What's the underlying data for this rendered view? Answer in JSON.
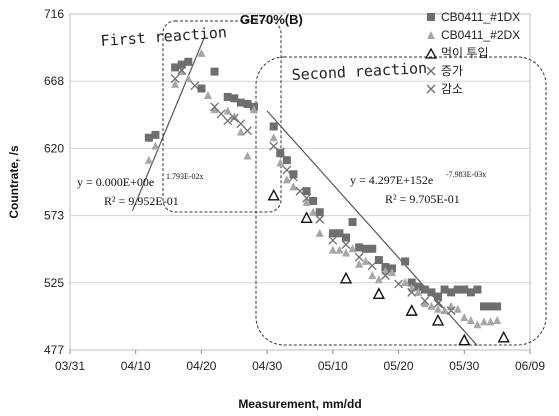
{
  "chart_data": {
    "type": "scatter",
    "title": "GE70%(B)",
    "xlabel": "Measurement, mm/dd",
    "ylabel": "Countrate, /s",
    "x_ticks": [
      "03/31",
      "04/10",
      "04/20",
      "04/30",
      "05/10",
      "05/20",
      "05/30",
      "06/09"
    ],
    "y_ticks": [
      "716",
      "668",
      "620",
      "573",
      "525",
      "477"
    ],
    "ylim": [
      477,
      716
    ],
    "xlim": [
      0,
      70
    ],
    "grid": "horizontal",
    "legend_position": "top-right",
    "legend": [
      "CB0411_#1DX",
      "CB0411_#2DX",
      "먹이 투입",
      "증가",
      "감소"
    ],
    "series": [
      {
        "name": "CB0411_#1DX",
        "marker": "square",
        "color": "#6e6e6e",
        "points": [
          [
            12,
            628
          ],
          [
            13,
            630
          ],
          [
            16,
            678
          ],
          [
            17,
            680
          ],
          [
            18,
            682
          ],
          [
            20,
            663
          ],
          [
            22,
            675
          ],
          [
            24,
            657
          ],
          [
            25,
            656
          ],
          [
            26,
            653
          ],
          [
            27,
            652
          ],
          [
            28,
            650
          ],
          [
            31,
            636
          ],
          [
            32,
            617
          ],
          [
            33,
            612
          ],
          [
            34,
            602
          ],
          [
            36,
            590
          ],
          [
            37,
            583
          ],
          [
            38,
            575
          ],
          [
            40,
            560
          ],
          [
            41,
            560
          ],
          [
            42,
            557
          ],
          [
            43,
            568
          ],
          [
            44,
            550
          ],
          [
            45,
            549
          ],
          [
            46,
            549
          ],
          [
            47,
            541
          ],
          [
            48,
            536
          ],
          [
            49,
            535
          ],
          [
            51,
            540
          ],
          [
            52,
            525
          ],
          [
            53,
            522
          ],
          [
            54,
            520
          ],
          [
            55,
            518
          ],
          [
            56,
            515
          ],
          [
            57,
            520
          ],
          [
            58,
            518
          ],
          [
            59,
            520
          ],
          [
            60,
            520
          ],
          [
            61,
            518
          ],
          [
            62,
            520
          ],
          [
            63,
            508
          ],
          [
            64,
            508
          ],
          [
            65,
            508
          ]
        ]
      },
      {
        "name": "CB0411_#2DX",
        "marker": "triangle",
        "color": "#a6a6a6",
        "points": [
          [
            12,
            612
          ],
          [
            13,
            622
          ],
          [
            16,
            666
          ],
          [
            17,
            675
          ],
          [
            18,
            670
          ],
          [
            20,
            688
          ],
          [
            21,
            658
          ],
          [
            22,
            648
          ],
          [
            24,
            647
          ],
          [
            25,
            643
          ],
          [
            26,
            632
          ],
          [
            27,
            615
          ],
          [
            28,
            648
          ],
          [
            31,
            628
          ],
          [
            32,
            610
          ],
          [
            33,
            598
          ],
          [
            34,
            593
          ],
          [
            36,
            582
          ],
          [
            37,
            575
          ],
          [
            38,
            560
          ],
          [
            40,
            548
          ],
          [
            41,
            548
          ],
          [
            42,
            546
          ],
          [
            43,
            549
          ],
          [
            44,
            538
          ],
          [
            45,
            540
          ],
          [
            46,
            530
          ],
          [
            47,
            527
          ],
          [
            48,
            533
          ],
          [
            49,
            532
          ],
          [
            51,
            525
          ],
          [
            52,
            521
          ],
          [
            53,
            518
          ],
          [
            54,
            510
          ],
          [
            55,
            508
          ],
          [
            56,
            506
          ],
          [
            57,
            505
          ],
          [
            58,
            508
          ],
          [
            59,
            506
          ],
          [
            60,
            500
          ],
          [
            61,
            498
          ],
          [
            62,
            495
          ],
          [
            63,
            497
          ],
          [
            64,
            497
          ],
          [
            65,
            498
          ]
        ]
      },
      {
        "name": "먹이 투입",
        "marker": "open-triangle",
        "color": "#111111",
        "points": [
          [
            31,
            587
          ],
          [
            36,
            571
          ],
          [
            42,
            528
          ],
          [
            47,
            517
          ],
          [
            52,
            505
          ],
          [
            56,
            498
          ],
          [
            60,
            484
          ],
          [
            66,
            486
          ]
        ]
      },
      {
        "name": "증가",
        "marker": "x",
        "color": "#6e6e6e",
        "points": [
          [
            16,
            670
          ],
          [
            17,
            676
          ],
          [
            19,
            665
          ],
          [
            22,
            650
          ],
          [
            23,
            645
          ],
          [
            24,
            640
          ]
        ]
      },
      {
        "name": "감소",
        "marker": "x",
        "color": "#6e6e6e",
        "points": [
          [
            25,
            642
          ],
          [
            26,
            638
          ],
          [
            27,
            633
          ],
          [
            31,
            622
          ],
          [
            32,
            618
          ],
          [
            33,
            605
          ],
          [
            34,
            600
          ],
          [
            35,
            590
          ],
          [
            36,
            585
          ],
          [
            38,
            570
          ],
          [
            40,
            555
          ],
          [
            42,
            552
          ],
          [
            44,
            543
          ],
          [
            46,
            537
          ],
          [
            48,
            530
          ],
          [
            50,
            524
          ],
          [
            52,
            518
          ],
          [
            54,
            512
          ],
          [
            56,
            510
          ],
          [
            58,
            505
          ]
        ]
      }
    ],
    "trendlines": [
      {
        "from": [
          9.5,
          576
        ],
        "to": [
          20.5,
          700
        ]
      },
      {
        "from": [
          30,
          647
        ],
        "to": [
          62,
          480
        ]
      }
    ],
    "annotations": {
      "first_region_label": "First reaction",
      "second_region_label": "Second reaction",
      "eq1_main": "y = 0.000E+00e",
      "eq1_exp": "1.793E-02x",
      "eq1_r2": "R² = 9.952E-01",
      "eq2_main": "y = 4.297E+152e",
      "eq2_exp": "-7.983E-03x",
      "eq2_r2": "R² = 9.705E-01"
    }
  }
}
